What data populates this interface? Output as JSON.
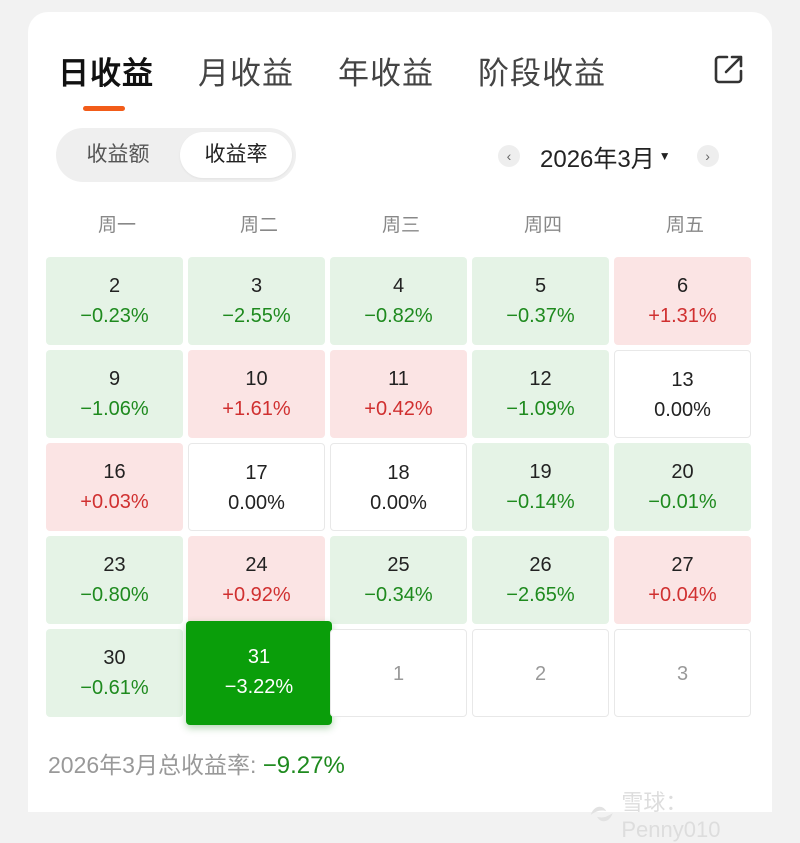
{
  "tabs": [
    {
      "label": "日收益",
      "active": true
    },
    {
      "label": "月收益",
      "active": false
    },
    {
      "label": "年收益",
      "active": false
    },
    {
      "label": "阶段收益",
      "active": false
    }
  ],
  "segment": {
    "options": [
      "收益额",
      "收益率"
    ],
    "selected": "收益率"
  },
  "month_nav": {
    "prev_icon": "chevron-left-icon",
    "label": "2026年3月",
    "caret_icon": "caret-down-icon",
    "next_icon": "chevron-right-icon"
  },
  "weekdays": [
    "周一",
    "周二",
    "周三",
    "周四",
    "周五"
  ],
  "calendar": [
    [
      {
        "day": "2",
        "pct": "−0.23%",
        "type": "down"
      },
      {
        "day": "3",
        "pct": "−2.55%",
        "type": "down"
      },
      {
        "day": "4",
        "pct": "−0.82%",
        "type": "down"
      },
      {
        "day": "5",
        "pct": "−0.37%",
        "type": "down"
      },
      {
        "day": "6",
        "pct": "+1.31%",
        "type": "up"
      }
    ],
    [
      {
        "day": "9",
        "pct": "−1.06%",
        "type": "down"
      },
      {
        "day": "10",
        "pct": "+1.61%",
        "type": "up"
      },
      {
        "day": "11",
        "pct": "+0.42%",
        "type": "up"
      },
      {
        "day": "12",
        "pct": "−1.09%",
        "type": "down"
      },
      {
        "day": "13",
        "pct": "0.00%",
        "type": "flat"
      }
    ],
    [
      {
        "day": "16",
        "pct": "+0.03%",
        "type": "up"
      },
      {
        "day": "17",
        "pct": "0.00%",
        "type": "flat"
      },
      {
        "day": "18",
        "pct": "0.00%",
        "type": "flat"
      },
      {
        "day": "19",
        "pct": "−0.14%",
        "type": "down"
      },
      {
        "day": "20",
        "pct": "−0.01%",
        "type": "down"
      }
    ],
    [
      {
        "day": "23",
        "pct": "−0.80%",
        "type": "down"
      },
      {
        "day": "24",
        "pct": "+0.92%",
        "type": "up"
      },
      {
        "day": "25",
        "pct": "−0.34%",
        "type": "down"
      },
      {
        "day": "26",
        "pct": "−2.65%",
        "type": "down"
      },
      {
        "day": "27",
        "pct": "+0.04%",
        "type": "up"
      }
    ],
    [
      {
        "day": "30",
        "pct": "−0.61%",
        "type": "down"
      },
      {
        "day": "31",
        "pct": "−3.22%",
        "type": "selected"
      },
      {
        "day": "1",
        "pct": "",
        "type": "next"
      },
      {
        "day": "2",
        "pct": "",
        "type": "next"
      },
      {
        "day": "3",
        "pct": "",
        "type": "next"
      }
    ]
  ],
  "summary": {
    "label": "2026年3月总收益率:",
    "value": "−9.27%"
  },
  "watermark": {
    "text": "雪球：Penny010"
  },
  "colors": {
    "accent": "#f25c19",
    "loss_green": "#1e8a1e",
    "gain_red": "#d03030",
    "selected_bg": "#0a9e0a"
  },
  "share_icon": "share-icon"
}
